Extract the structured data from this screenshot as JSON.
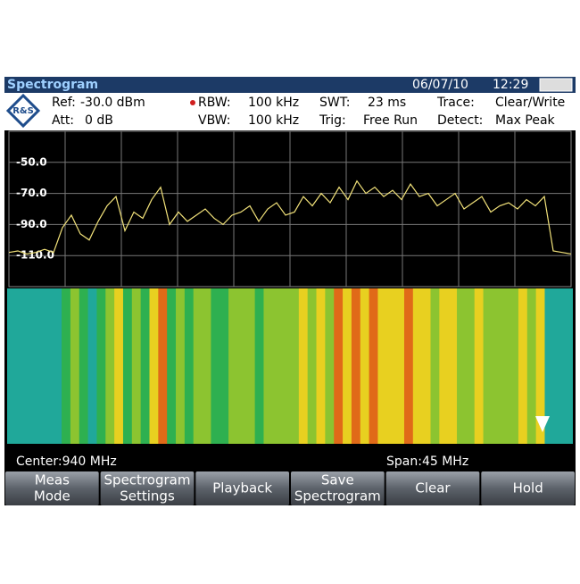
{
  "header": {
    "title": "Spectrogram",
    "date": "06/07/10",
    "time": "12:29"
  },
  "settings": {
    "ref_label": "Ref:",
    "ref": "-30.0 dBm",
    "att_label": "Att:",
    "att": "0 dB",
    "rbw_label": "RBW:",
    "rbw": "100 kHz",
    "vbw_label": "VBW:",
    "vbw": "100 kHz",
    "swt_label": "SWT:",
    "swt": "23 ms",
    "trig_label": "Trig:",
    "trig": "Free Run",
    "trace_label": "Trace:",
    "trace": "Clear/Write",
    "detect_label": "Detect:",
    "detect": "Max Peak"
  },
  "chart_data": {
    "type": "line",
    "color": "#f2e27a",
    "grid": true,
    "ylim": [
      -130,
      -30
    ],
    "yticks": [
      {
        "value": -50,
        "label": "-50.0"
      },
      {
        "value": -70,
        "label": "-70.0"
      },
      {
        "value": -90,
        "label": "-90.0"
      },
      {
        "value": -110,
        "label": "-110.0"
      }
    ],
    "values": [
      -108,
      -107,
      -109,
      -108,
      -106,
      -108,
      -92,
      -84,
      -96,
      -100,
      -88,
      -78,
      -72,
      -94,
      -82,
      -86,
      -74,
      -66,
      -90,
      -82,
      -88,
      -84,
      -80,
      -86,
      -90,
      -84,
      -82,
      -78,
      -88,
      -80,
      -76,
      -84,
      -82,
      -72,
      -78,
      -70,
      -76,
      -66,
      -74,
      -62,
      -70,
      -66,
      -72,
      -68,
      -74,
      -64,
      -72,
      -70,
      -78,
      -74,
      -70,
      -80,
      -76,
      -72,
      -82,
      -78,
      -76,
      -80,
      -74,
      -78,
      -72,
      -107,
      -108,
      -109
    ]
  },
  "footer": {
    "center": "Center:940 MHz",
    "span": "Span:45 MHz"
  },
  "softkeys": [
    [
      "Meas",
      "Mode"
    ],
    [
      "Spectrogram",
      "Settings"
    ],
    [
      "Playback"
    ],
    [
      "Save",
      "Spectrogram"
    ],
    [
      "Clear"
    ],
    [
      "Hold"
    ]
  ]
}
